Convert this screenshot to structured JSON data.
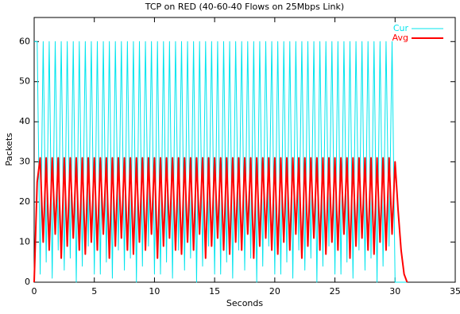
{
  "chart_data": {
    "type": "line",
    "title": "TCP on RED (40-60-40 Flows on 25Mbps Link)",
    "xlabel": "Seconds",
    "ylabel": "Packets",
    "x": [
      0,
      0.25,
      0.5,
      0.75,
      1,
      1.25,
      1.5,
      1.75,
      2,
      2.25,
      2.5,
      2.75,
      3,
      3.25,
      3.5,
      3.75,
      4,
      4.25,
      4.5,
      4.75,
      5,
      5.25,
      5.5,
      5.75,
      6,
      6.25,
      6.5,
      6.75,
      7,
      7.25,
      7.5,
      7.75,
      8,
      8.25,
      8.5,
      8.75,
      9,
      9.25,
      9.5,
      9.75,
      10,
      10.25,
      10.5,
      10.75,
      11,
      11.25,
      11.5,
      11.75,
      12,
      12.25,
      12.5,
      12.75,
      13,
      13.25,
      13.5,
      13.75,
      14,
      14.25,
      14.5,
      14.75,
      15,
      15.25,
      15.5,
      15.75,
      16,
      16.25,
      16.5,
      16.75,
      17,
      17.25,
      17.5,
      17.75,
      18,
      18.25,
      18.5,
      18.75,
      19,
      19.25,
      19.5,
      19.75,
      20,
      20.25,
      20.5,
      20.75,
      21,
      21.25,
      21.5,
      21.75,
      22,
      22.25,
      22.5,
      22.75,
      23,
      23.25,
      23.5,
      23.75,
      24,
      24.25,
      24.5,
      24.75,
      25,
      25.25,
      25.5,
      25.75,
      26,
      26.25,
      26.5,
      26.75,
      27,
      27.25,
      27.5,
      27.75,
      28,
      28.25,
      28.5,
      28.75,
      29,
      29.25,
      29.5,
      29.75,
      30,
      30.25,
      30.5,
      30.75,
      31
    ],
    "series": [
      {
        "name": "Cur",
        "color": "#00e5ee",
        "values": [
          60,
          60,
          2,
          60,
          5,
          60,
          1,
          60,
          8,
          60,
          3,
          60,
          6,
          60,
          0,
          60,
          4,
          60,
          9,
          60,
          2,
          60,
          2,
          60,
          5,
          60,
          1,
          60,
          8,
          60,
          3,
          60,
          6,
          60,
          0,
          60,
          4,
          60,
          9,
          60,
          2,
          60,
          2,
          60,
          5,
          60,
          1,
          60,
          8,
          60,
          3,
          60,
          6,
          60,
          0,
          60,
          4,
          60,
          9,
          60,
          2,
          60,
          2,
          60,
          5,
          60,
          1,
          60,
          8,
          60,
          3,
          60,
          6,
          60,
          0,
          60,
          4,
          60,
          9,
          60,
          2,
          60,
          2,
          60,
          5,
          60,
          1,
          60,
          8,
          60,
          3,
          60,
          6,
          60,
          0,
          60,
          4,
          60,
          9,
          60,
          2,
          60,
          2,
          60,
          5,
          60,
          1,
          60,
          8,
          60,
          3,
          60,
          6,
          60,
          0,
          60,
          4,
          60,
          9,
          60,
          0,
          0,
          0,
          0,
          0
        ]
      },
      {
        "name": "Avg",
        "color": "#ff0000",
        "values": [
          0,
          25,
          31,
          10,
          31,
          8,
          31,
          12,
          31,
          6,
          31,
          9,
          31,
          11,
          31,
          8,
          31,
          7,
          31,
          10,
          31,
          8,
          31,
          12,
          31,
          6,
          31,
          9,
          31,
          11,
          31,
          8,
          31,
          7,
          31,
          10,
          31,
          8,
          31,
          12,
          31,
          6,
          31,
          9,
          31,
          11,
          31,
          8,
          31,
          7,
          31,
          10,
          31,
          8,
          31,
          12,
          31,
          6,
          31,
          9,
          31,
          11,
          31,
          8,
          31,
          7,
          31,
          10,
          31,
          8,
          31,
          12,
          31,
          6,
          31,
          9,
          31,
          11,
          31,
          8,
          31,
          7,
          31,
          10,
          31,
          8,
          31,
          12,
          31,
          6,
          31,
          9,
          31,
          11,
          31,
          8,
          31,
          7,
          31,
          10,
          31,
          8,
          31,
          12,
          31,
          6,
          31,
          9,
          31,
          11,
          31,
          8,
          31,
          7,
          31,
          10,
          31,
          8,
          31,
          12,
          30,
          18,
          8,
          2,
          0
        ]
      }
    ],
    "xlim": [
      0,
      35
    ],
    "xticks": [
      0,
      5,
      10,
      15,
      20,
      25,
      30,
      35
    ],
    "ylim": [
      0,
      66
    ],
    "yticks": [
      0,
      10,
      20,
      30,
      40,
      50,
      60
    ],
    "legend": "top right"
  }
}
